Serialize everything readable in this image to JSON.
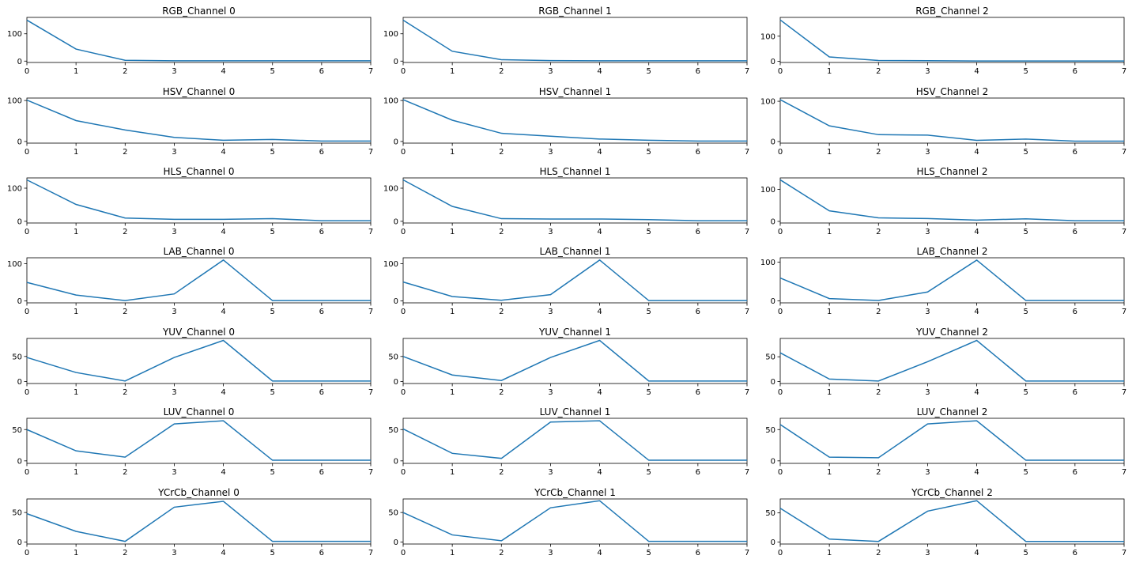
{
  "colors": {
    "line": "#1f77b4",
    "axis": "#000000",
    "background": "#ffffff"
  },
  "chart_data": [
    {
      "type": "line",
      "title": "RGB_Channel 0",
      "x": [
        0,
        1,
        2,
        3,
        4,
        5,
        6,
        7
      ],
      "values": [
        150,
        44,
        3,
        1,
        1,
        1,
        1,
        1
      ],
      "xlim": [
        0,
        7
      ],
      "ylim": [
        -5,
        160
      ],
      "yticks": [
        0,
        100
      ]
    },
    {
      "type": "line",
      "title": "RGB_Channel 1",
      "x": [
        0,
        1,
        2,
        3,
        4,
        5,
        6,
        7
      ],
      "values": [
        150,
        36,
        5,
        2,
        1,
        1,
        1,
        1
      ],
      "xlim": [
        0,
        7
      ],
      "ylim": [
        -5,
        160
      ],
      "yticks": [
        0,
        100
      ]
    },
    {
      "type": "line",
      "title": "RGB_Channel 2",
      "x": [
        0,
        1,
        2,
        3,
        4,
        5,
        6,
        7
      ],
      "values": [
        165,
        17,
        3,
        2,
        1,
        1,
        1,
        1
      ],
      "xlim": [
        0,
        7
      ],
      "ylim": [
        -5,
        175
      ],
      "yticks": [
        0,
        100
      ]
    },
    {
      "type": "line",
      "title": "HSV_Channel 0",
      "x": [
        0,
        1,
        2,
        3,
        4,
        5,
        6,
        7
      ],
      "values": [
        101,
        51,
        28,
        10,
        3,
        5,
        1,
        1
      ],
      "xlim": [
        0,
        7
      ],
      "ylim": [
        -4,
        106
      ],
      "yticks": [
        0,
        100
      ]
    },
    {
      "type": "line",
      "title": "HSV_Channel 1",
      "x": [
        0,
        1,
        2,
        3,
        4,
        5,
        6,
        7
      ],
      "values": [
        102,
        52,
        20,
        13,
        6,
        3,
        1,
        1
      ],
      "xlim": [
        0,
        7
      ],
      "ylim": [
        -4,
        106
      ],
      "yticks": [
        0,
        100
      ]
    },
    {
      "type": "line",
      "title": "HSV_Channel 2",
      "x": [
        0,
        1,
        2,
        3,
        4,
        5,
        6,
        7
      ],
      "values": [
        104,
        39,
        17,
        16,
        3,
        6,
        1,
        1
      ],
      "xlim": [
        0,
        7
      ],
      "ylim": [
        -4,
        108
      ],
      "yticks": [
        0,
        100
      ]
    },
    {
      "type": "line",
      "title": "HLS_Channel 0",
      "x": [
        0,
        1,
        2,
        3,
        4,
        5,
        6,
        7
      ],
      "values": [
        125,
        51,
        10,
        6,
        6,
        8,
        2,
        2
      ],
      "xlim": [
        0,
        7
      ],
      "ylim": [
        -5,
        131
      ],
      "yticks": [
        0,
        100
      ]
    },
    {
      "type": "line",
      "title": "HLS_Channel 1",
      "x": [
        0,
        1,
        2,
        3,
        4,
        5,
        6,
        7
      ],
      "values": [
        125,
        45,
        8,
        7,
        7,
        5,
        2,
        2
      ],
      "xlim": [
        0,
        7
      ],
      "ylim": [
        -5,
        131
      ],
      "yticks": [
        0,
        100
      ]
    },
    {
      "type": "line",
      "title": "HLS_Channel 2",
      "x": [
        0,
        1,
        2,
        3,
        4,
        5,
        6,
        7
      ],
      "values": [
        130,
        33,
        11,
        9,
        4,
        8,
        2,
        2
      ],
      "xlim": [
        0,
        7
      ],
      "ylim": [
        -5,
        136
      ],
      "yticks": [
        0,
        100
      ]
    },
    {
      "type": "line",
      "title": "LAB_Channel 0",
      "x": [
        0,
        1,
        2,
        3,
        4,
        5,
        6,
        7
      ],
      "values": [
        50,
        16,
        1,
        19,
        110,
        1,
        1,
        1
      ],
      "xlim": [
        0,
        7
      ],
      "ylim": [
        -5,
        116
      ],
      "yticks": [
        0,
        100
      ]
    },
    {
      "type": "line",
      "title": "LAB_Channel 1",
      "x": [
        0,
        1,
        2,
        3,
        4,
        5,
        6,
        7
      ],
      "values": [
        51,
        12,
        2,
        17,
        110,
        1,
        1,
        1
      ],
      "xlim": [
        0,
        7
      ],
      "ylim": [
        -5,
        116
      ],
      "yticks": [
        0,
        100
      ]
    },
    {
      "type": "line",
      "title": "LAB_Channel 2",
      "x": [
        0,
        1,
        2,
        3,
        4,
        5,
        6,
        7
      ],
      "values": [
        59,
        6,
        1,
        23,
        105,
        1,
        1,
        1
      ],
      "xlim": [
        0,
        7
      ],
      "ylim": [
        -5,
        111
      ],
      "yticks": [
        0,
        100
      ]
    },
    {
      "type": "line",
      "title": "YUV_Channel 0",
      "x": [
        0,
        1,
        2,
        3,
        4,
        5,
        6,
        7
      ],
      "values": [
        48,
        18,
        1,
        48,
        82,
        1,
        1,
        1
      ],
      "xlim": [
        0,
        7
      ],
      "ylim": [
        -4,
        86
      ],
      "yticks": [
        0,
        50
      ]
    },
    {
      "type": "line",
      "title": "YUV_Channel 1",
      "x": [
        0,
        1,
        2,
        3,
        4,
        5,
        6,
        7
      ],
      "values": [
        50,
        13,
        2,
        48,
        82,
        1,
        1,
        1
      ],
      "xlim": [
        0,
        7
      ],
      "ylim": [
        -4,
        86
      ],
      "yticks": [
        0,
        50
      ]
    },
    {
      "type": "line",
      "title": "YUV_Channel 2",
      "x": [
        0,
        1,
        2,
        3,
        4,
        5,
        6,
        7
      ],
      "values": [
        58,
        5,
        1,
        40,
        83,
        1,
        1,
        1
      ],
      "xlim": [
        0,
        7
      ],
      "ylim": [
        -4,
        87
      ],
      "yticks": [
        0,
        50
      ]
    },
    {
      "type": "line",
      "title": "LUV_Channel 0",
      "x": [
        0,
        1,
        2,
        3,
        4,
        5,
        6,
        7
      ],
      "values": [
        50,
        16,
        6,
        59,
        64,
        1,
        1,
        1
      ],
      "xlim": [
        0,
        7
      ],
      "ylim": [
        -4,
        68
      ],
      "yticks": [
        0,
        50
      ]
    },
    {
      "type": "line",
      "title": "LUV_Channel 1",
      "x": [
        0,
        1,
        2,
        3,
        4,
        5,
        6,
        7
      ],
      "values": [
        51,
        12,
        4,
        62,
        64,
        1,
        1,
        1
      ],
      "xlim": [
        0,
        7
      ],
      "ylim": [
        -4,
        68
      ],
      "yticks": [
        0,
        50
      ]
    },
    {
      "type": "line",
      "title": "LUV_Channel 2",
      "x": [
        0,
        1,
        2,
        3,
        4,
        5,
        6,
        7
      ],
      "values": [
        58,
        6,
        5,
        59,
        64,
        1,
        1,
        1
      ],
      "xlim": [
        0,
        7
      ],
      "ylim": [
        -4,
        68
      ],
      "yticks": [
        0,
        50
      ]
    },
    {
      "type": "line",
      "title": "YCrCb_Channel 0",
      "x": [
        0,
        1,
        2,
        3,
        4,
        5,
        6,
        7
      ],
      "values": [
        48,
        18,
        1,
        59,
        69,
        1,
        1,
        1
      ],
      "xlim": [
        0,
        7
      ],
      "ylim": [
        -3.5,
        73
      ],
      "yticks": [
        0,
        50
      ]
    },
    {
      "type": "line",
      "title": "YCrCb_Channel 1",
      "x": [
        0,
        1,
        2,
        3,
        4,
        5,
        6,
        7
      ],
      "values": [
        50,
        12,
        2,
        58,
        70,
        1,
        1,
        1
      ],
      "xlim": [
        0,
        7
      ],
      "ylim": [
        -3.5,
        73
      ],
      "yticks": [
        0,
        50
      ]
    },
    {
      "type": "line",
      "title": "YCrCb_Channel 2",
      "x": [
        0,
        1,
        2,
        3,
        4,
        5,
        6,
        7
      ],
      "values": [
        58,
        5,
        1,
        53,
        71,
        1,
        1,
        1
      ],
      "xlim": [
        0,
        7
      ],
      "ylim": [
        -3.5,
        74
      ],
      "yticks": [
        0,
        50
      ]
    }
  ]
}
